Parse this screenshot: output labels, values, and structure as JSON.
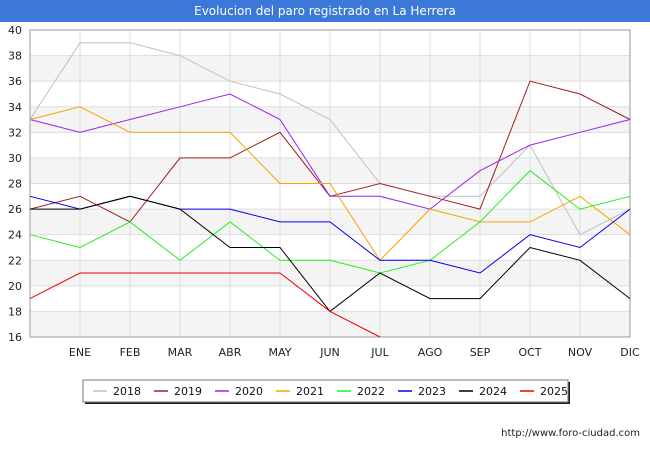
{
  "header": {
    "title": "Evolucion del paro registrado en La Herrera"
  },
  "footer": {
    "url": "http://www.foro-ciudad.com"
  },
  "chart_data": {
    "type": "line",
    "title": "Evolucion del paro registrado en La Herrera",
    "xlabel": "",
    "ylabel": "",
    "categories": [
      "",
      "ENE",
      "FEB",
      "MAR",
      "ABR",
      "MAY",
      "JUN",
      "JUL",
      "AGO",
      "SEP",
      "OCT",
      "NOV",
      "DIC"
    ],
    "ylim": [
      16,
      40
    ],
    "yticks": [
      16,
      18,
      20,
      22,
      24,
      26,
      28,
      30,
      32,
      34,
      36,
      38,
      40
    ],
    "grid": true,
    "legend_position": "bottom",
    "series": [
      {
        "name": "2018",
        "color": "#c0c0c0",
        "values": [
          33,
          39,
          39,
          38,
          36,
          35,
          33,
          28,
          27,
          27,
          31,
          24,
          26
        ]
      },
      {
        "name": "2019",
        "color": "#a02020",
        "values": [
          26,
          27,
          25,
          30,
          30,
          32,
          27,
          28,
          27,
          26,
          36,
          35,
          33
        ]
      },
      {
        "name": "2020",
        "color": "#9a20f0",
        "values": [
          33,
          32,
          33,
          34,
          35,
          33,
          27,
          27,
          26,
          29,
          31,
          32,
          33
        ]
      },
      {
        "name": "2021",
        "color": "#f5a500",
        "values": [
          33,
          34,
          32,
          32,
          32,
          28,
          28,
          22,
          26,
          25,
          25,
          27,
          24
        ]
      },
      {
        "name": "2022",
        "color": "#20f020",
        "values": [
          24,
          23,
          25,
          22,
          25,
          22,
          22,
          21,
          22,
          25,
          29,
          26,
          27
        ]
      },
      {
        "name": "2023",
        "color": "#0000ee",
        "values": [
          27,
          26,
          27,
          26,
          26,
          25,
          25,
          22,
          22,
          21,
          24,
          23,
          26
        ]
      },
      {
        "name": "2024",
        "color": "#000000",
        "values": [
          26,
          26,
          27,
          26,
          23,
          23,
          18,
          21,
          19,
          19,
          23,
          22,
          19
        ]
      },
      {
        "name": "2025",
        "color": "#ee0000",
        "values": [
          19,
          21,
          21,
          21,
          21,
          21,
          18,
          16,
          null,
          null,
          null,
          null,
          null
        ]
      }
    ]
  }
}
